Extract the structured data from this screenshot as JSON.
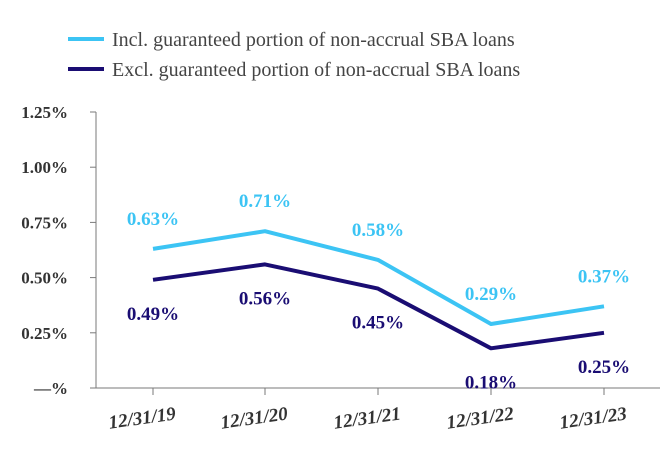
{
  "chart_data": {
    "type": "line",
    "title": "",
    "xlabel": "",
    "ylabel": "",
    "categories": [
      "12/31/19",
      "12/31/20",
      "12/31/21",
      "12/31/22",
      "12/31/23"
    ],
    "ylim": [
      0,
      1.25
    ],
    "yticks": [
      {
        "value": 0,
        "label": "—%"
      },
      {
        "value": 0.25,
        "label": "0.25%"
      },
      {
        "value": 0.5,
        "label": "0.50%"
      },
      {
        "value": 0.75,
        "label": "0.75%"
      },
      {
        "value": 1.0,
        "label": "1.00%"
      },
      {
        "value": 1.25,
        "label": "1.25%"
      }
    ],
    "legend_position": "top",
    "grid": false,
    "series": [
      {
        "name": "Incl. guaranteed portion of non-accrual SBA loans",
        "color": "#3cc4f4",
        "label_position": "above",
        "values": [
          0.63,
          0.71,
          0.58,
          0.29,
          0.37
        ],
        "labels": [
          "0.63%",
          "0.71%",
          "0.58%",
          "0.29%",
          "0.37%"
        ]
      },
      {
        "name": "Excl. guaranteed portion of non-accrual SBA loans",
        "color": "#1a0d73",
        "label_position": "below",
        "values": [
          0.49,
          0.56,
          0.45,
          0.18,
          0.25
        ],
        "labels": [
          "0.49%",
          "0.56%",
          "0.45%",
          "0.18%",
          "0.25%"
        ]
      }
    ]
  }
}
